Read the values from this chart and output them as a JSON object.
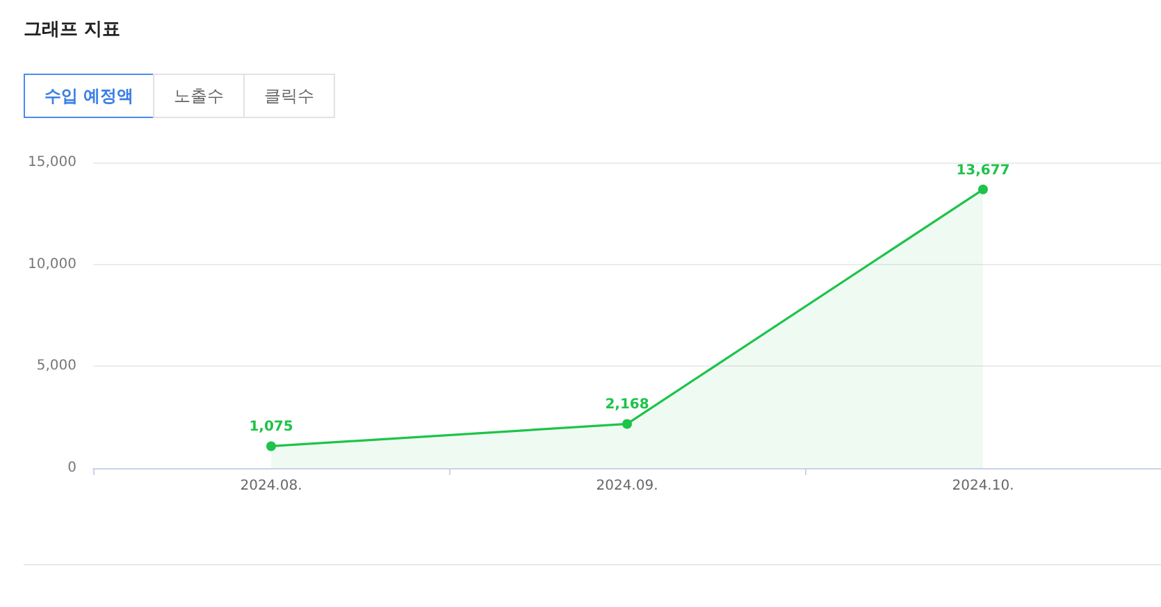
{
  "chart_data": {
    "type": "area",
    "title": "그래프 지표",
    "annotations": [
      "수입 예정액",
      "노출수",
      "클릭수"
    ],
    "categories": [
      "2024.08.",
      "2024.09.",
      "2024.10."
    ],
    "values": [
      1075,
      2168,
      13677
    ],
    "value_labels": [
      "1,075",
      "2,168",
      "13,677"
    ],
    "color": "#1ec34a",
    "ylim": [
      0,
      15000
    ],
    "yticks": [
      {
        "value": 0,
        "label": "0"
      },
      {
        "value": 5000,
        "label": "5,000"
      },
      {
        "value": 10000,
        "label": "10,000"
      },
      {
        "value": 15000,
        "label": "15,000"
      }
    ],
    "grid": "y",
    "marker": "circle"
  }
}
